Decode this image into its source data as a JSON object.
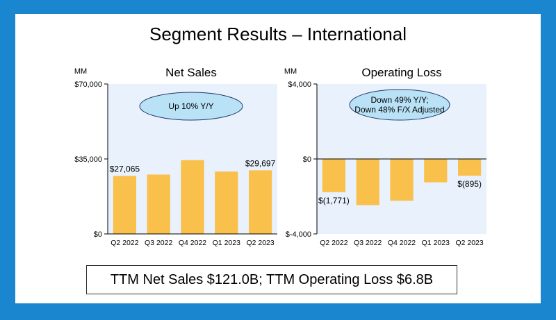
{
  "slide": {
    "title": "Segment Results – International",
    "summary": "TTM Net Sales $121.0B; TTM Operating Loss $6.8B"
  },
  "colors": {
    "frame": "#1a86d0",
    "plot_bg": "#e8f1fc",
    "bar": "#f9c04b",
    "ellipse_fill": "#b9e2f7",
    "ellipse_stroke": "#1f3864"
  },
  "chart_data": [
    {
      "type": "bar",
      "title": "Net Sales",
      "unit_label": "MM",
      "categories": [
        "Q2 2022",
        "Q3 2022",
        "Q4 2022",
        "Q1 2023",
        "Q2 2023"
      ],
      "values": [
        27065,
        27720,
        34460,
        29123,
        29697
      ],
      "ylim": [
        0,
        70000
      ],
      "yticks": [
        0,
        35000,
        70000
      ],
      "ytick_labels": [
        "$0",
        "$35,000",
        "$70,000"
      ],
      "data_labels": [
        {
          "index": 0,
          "text": "$27,065"
        },
        {
          "index": 4,
          "text": "$29,697"
        }
      ],
      "callout": [
        "Up 10% Y/Y"
      ]
    },
    {
      "type": "bar",
      "title": "Operating Loss",
      "unit_label": "MM",
      "categories": [
        "Q2 2022",
        "Q3 2022",
        "Q4 2022",
        "Q1 2023",
        "Q2 2023"
      ],
      "values": [
        -1771,
        -2465,
        -2228,
        -1247,
        -895
      ],
      "ylim": [
        -4000,
        4000
      ],
      "yticks": [
        -4000,
        0,
        4000
      ],
      "ytick_labels": [
        "$-4,000",
        "$0",
        "$4,000"
      ],
      "data_labels": [
        {
          "index": 0,
          "text": "$(1,771)"
        },
        {
          "index": 4,
          "text": "$(895)"
        }
      ],
      "callout": [
        "Down 49% Y/Y;",
        "Down 48% F/X Adjusted"
      ]
    }
  ]
}
